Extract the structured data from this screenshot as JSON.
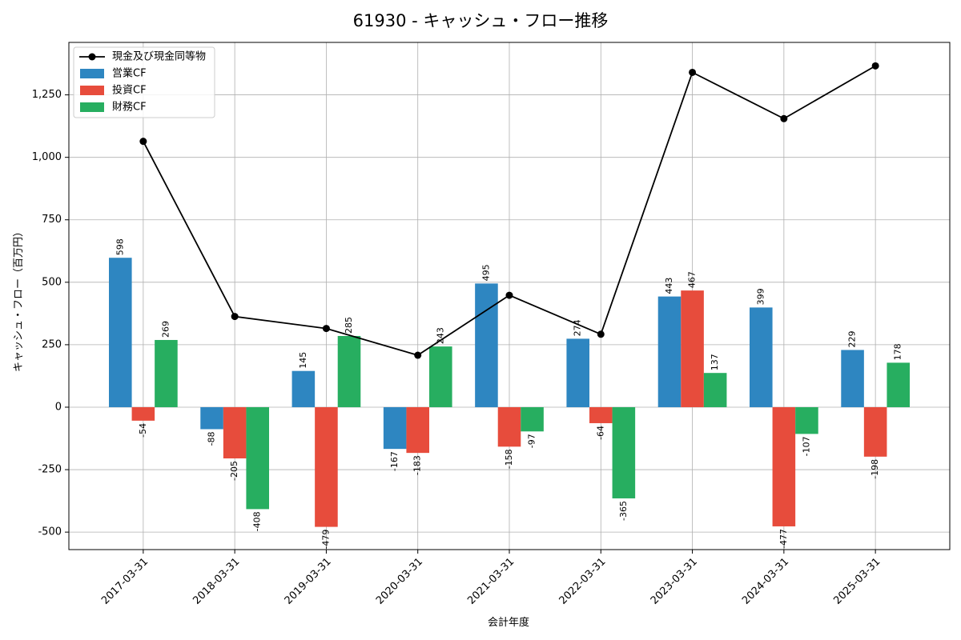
{
  "chart_data": {
    "type": "bar",
    "title": "61930 - キャッシュ・フロー推移",
    "xlabel": "会計年度",
    "ylabel": "キャッシュ・フロー（百万円）",
    "categories": [
      "2017-03-31",
      "2018-03-31",
      "2019-03-31",
      "2020-03-31",
      "2021-03-31",
      "2022-03-31",
      "2023-03-31",
      "2024-03-31",
      "2025-03-31"
    ],
    "ylim": [
      -570,
      1460
    ],
    "yticks": [
      -500,
      -250,
      0,
      250,
      500,
      750,
      1000,
      1250
    ],
    "ytick_labels": [
      "-500",
      "-250",
      "0",
      "250",
      "500",
      "750",
      "1,000",
      "1,250"
    ],
    "grid": true,
    "legend_position": "top-left",
    "series": [
      {
        "name": "営業CF",
        "kind": "bar",
        "color": "#2e86c1",
        "values": [
          598,
          -88,
          145,
          -167,
          495,
          274,
          443,
          399,
          229
        ]
      },
      {
        "name": "投資CF",
        "kind": "bar",
        "color": "#e74c3c",
        "values": [
          -54,
          -205,
          -479,
          -183,
          -158,
          -64,
          467,
          -477,
          -198
        ]
      },
      {
        "name": "財務CF",
        "kind": "bar",
        "color": "#27ae60",
        "values": [
          269,
          -408,
          285,
          243,
          -97,
          -365,
          137,
          -107,
          178
        ]
      },
      {
        "name": "現金及び現金同等物",
        "kind": "line",
        "color": "#000000",
        "values": [
          1064,
          363,
          315,
          208,
          448,
          292,
          1340,
          1155,
          1366
        ]
      }
    ]
  }
}
